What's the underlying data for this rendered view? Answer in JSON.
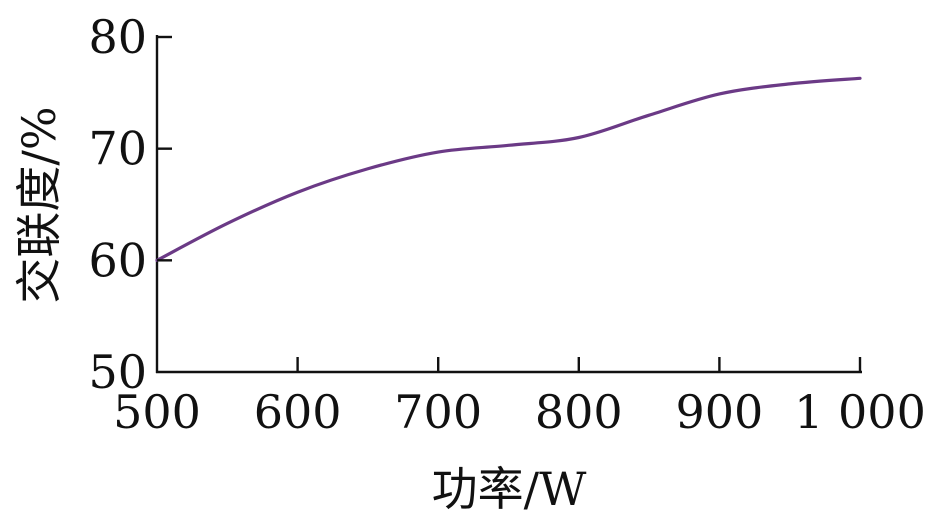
{
  "chart_data": {
    "type": "line",
    "xlabel": "功率/W",
    "ylabel": "交联度/%",
    "xlim": [
      500,
      1000
    ],
    "ylim": [
      50,
      80
    ],
    "x_ticks": [
      500,
      600,
      700,
      800,
      900,
      1000
    ],
    "x_tick_labels": [
      "500",
      "600",
      "700",
      "800",
      "900",
      "1 000"
    ],
    "y_ticks": [
      50,
      60,
      70,
      80
    ],
    "y_tick_labels": [
      "50",
      "60",
      "70",
      "80"
    ],
    "grid": false,
    "series": [
      {
        "color": "#6b3a86",
        "x": [
          500,
          550,
          600,
          650,
          700,
          750,
          800,
          850,
          900,
          950,
          1000
        ],
        "y": [
          60.0,
          63.3,
          66.1,
          68.2,
          69.7,
          70.3,
          71.0,
          73.0,
          74.9,
          75.8,
          76.3
        ]
      }
    ]
  }
}
